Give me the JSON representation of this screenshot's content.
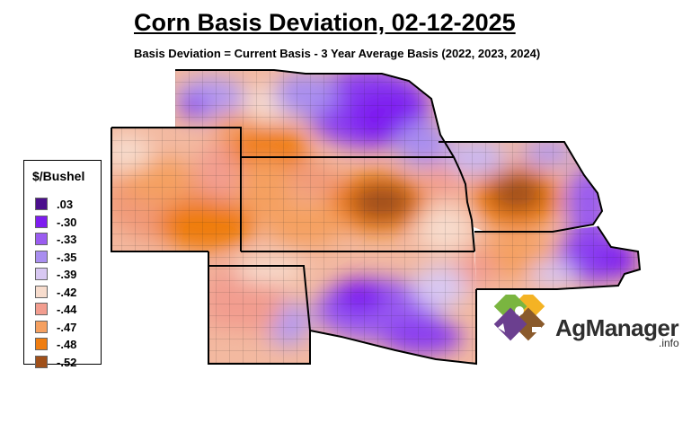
{
  "header": {
    "title": "Corn Basis Deviation, 02-12-2025",
    "subtitle": "Basis Deviation = Current Basis - 3 Year Average Basis (2022, 2023, 2024)"
  },
  "legend": {
    "title": "$/Bushel",
    "items": [
      {
        "label": ".03",
        "color": "#4b0f8c"
      },
      {
        "label": "-.30",
        "color": "#7e1cf0"
      },
      {
        "label": "-.33",
        "color": "#9a5cf0"
      },
      {
        "label": "-.35",
        "color": "#a98ef0"
      },
      {
        "label": "-.39",
        "color": "#d8c8f2"
      },
      {
        "label": "-.42",
        "color": "#f7dccd"
      },
      {
        "label": "-.44",
        "color": "#f29d8f"
      },
      {
        "label": "-.47",
        "color": "#f5a060"
      },
      {
        "label": "-.48",
        "color": "#ef7d10"
      },
      {
        "label": "-.52",
        "color": "#a0501a"
      }
    ]
  },
  "logo": {
    "word": "AgManager",
    "tld": ".info",
    "colors": [
      "#f4b324",
      "#7ab540",
      "#8a5a2b",
      "#6b3f8f"
    ]
  },
  "map": {
    "regions": [
      "Nebraska",
      "Iowa",
      "Kansas",
      "Missouri",
      "Colorado",
      "Oklahoma"
    ]
  }
}
